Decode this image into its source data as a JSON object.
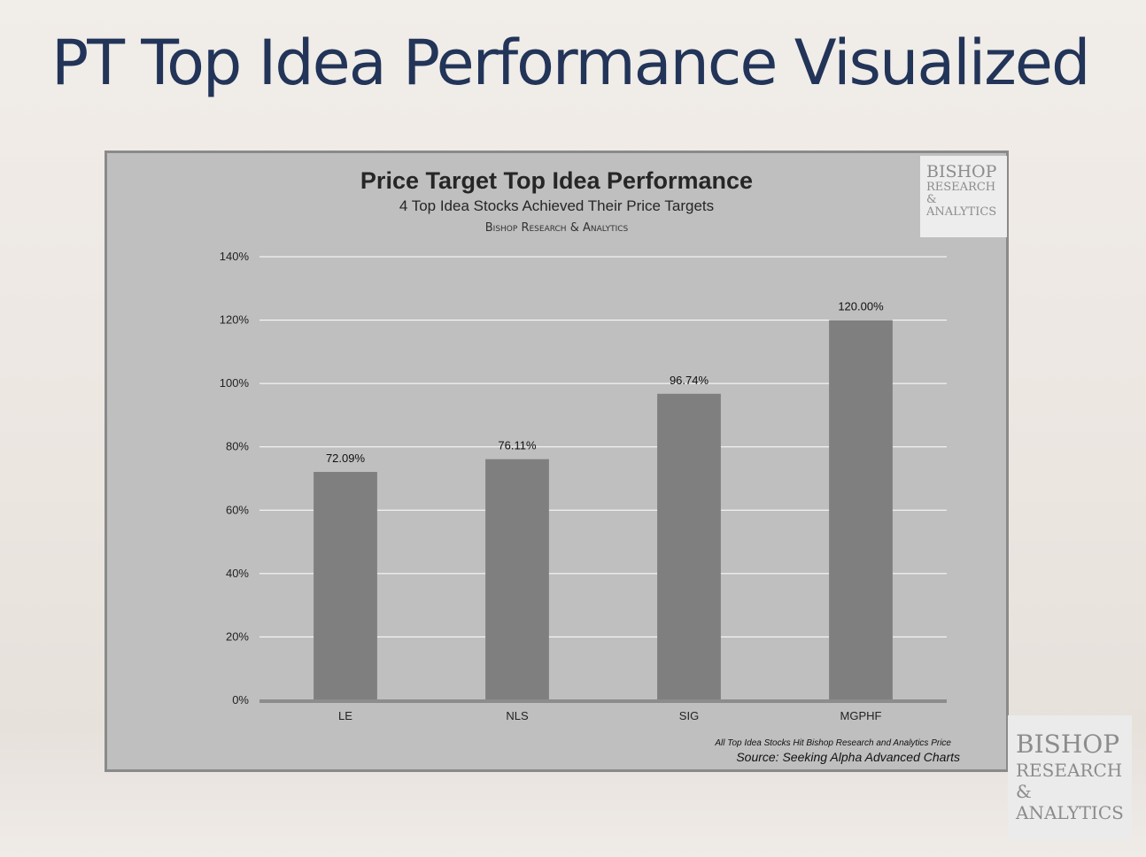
{
  "slide": {
    "title": "PT Top Idea Performance Visualized",
    "logo": {
      "line1": "BISHOP",
      "line2": "RESEARCH",
      "line3": "&",
      "line4": "ANALYTICS"
    }
  },
  "chart_header": {
    "title": "Price Target Top Idea Performance",
    "subtitle": "4 Top Idea Stocks Achieved Their Price Targets",
    "brand": "Bishop Research & Analytics",
    "logo": {
      "line1": "BISHOP",
      "line2": "RESEARCH",
      "line3": "&",
      "line4": "ANALYTICS"
    }
  },
  "chart_footer": {
    "note": "All Top Idea Stocks Hit Bishop Research and Analytics Price",
    "source": "Source: Seeking Alpha Advanced Charts"
  },
  "chart_data": {
    "type": "bar",
    "title": "Price Target Top Idea Performance",
    "subtitle": "4 Top Idea Stocks Achieved Their Price Targets",
    "categories": [
      "LE",
      "NLS",
      "SIG",
      "MGPHF"
    ],
    "values": [
      72.09,
      76.11,
      96.74,
      120.0
    ],
    "data_labels": [
      "72.09%",
      "76.11%",
      "96.74%",
      "120.00%"
    ],
    "ylim": [
      0,
      140
    ],
    "yticks": [
      0,
      20,
      40,
      60,
      80,
      100,
      120,
      140
    ],
    "ytick_labels": [
      "0%",
      "20%",
      "40%",
      "60%",
      "80%",
      "100%",
      "120%",
      "140%"
    ],
    "xlabel": "",
    "ylabel": "",
    "grid": true,
    "legend": "none",
    "colors": {
      "bar": "#7f7f7f",
      "plot_bg": "#bfbfbf",
      "grid": "#ffffff",
      "axis": "#8c8c8c",
      "title_text": "#223458"
    }
  }
}
